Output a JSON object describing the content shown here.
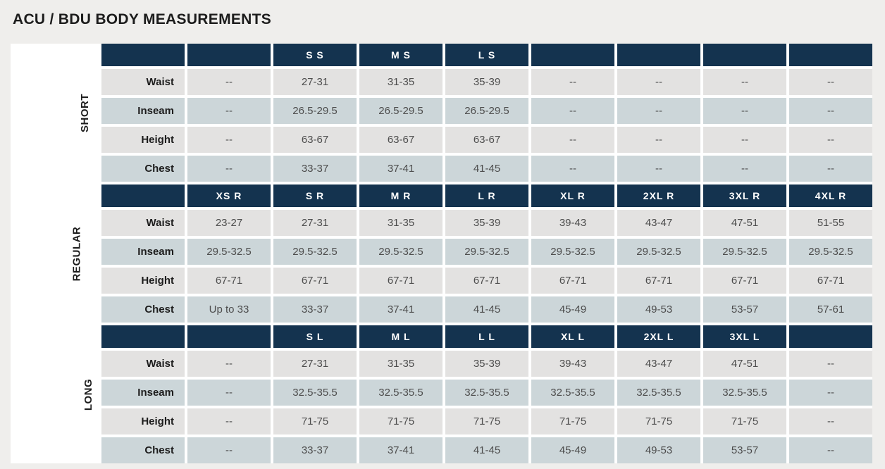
{
  "page": {
    "title": "ACU / BDU BODY MEASUREMENTS"
  },
  "colors": {
    "page_bg": "#efeeec",
    "header_bg": "#14334f",
    "row_gray": "#e3e2e1",
    "row_bluegray": "#ccd6d9",
    "header_text": "#ffffff",
    "value_text": "#4d4d4d",
    "label_text": "#1d1d1d",
    "separator": "#ffffff"
  },
  "table": {
    "measurement_labels": [
      "Waist",
      "Inseam",
      "Height",
      "Chest"
    ],
    "sections": [
      {
        "name": "SHORT",
        "size_headers": [
          "",
          "S S",
          "M S",
          "L S",
          "",
          "",
          "",
          ""
        ],
        "rows": [
          {
            "label": "Waist",
            "values": [
              "--",
              "27-31",
              "31-35",
              "35-39",
              "--",
              "--",
              "--",
              "--"
            ]
          },
          {
            "label": "Inseam",
            "values": [
              "--",
              "26.5-29.5",
              "26.5-29.5",
              "26.5-29.5",
              "--",
              "--",
              "--",
              "--"
            ]
          },
          {
            "label": "Height",
            "values": [
              "--",
              "63-67",
              "63-67",
              "63-67",
              "--",
              "--",
              "--",
              "--"
            ]
          },
          {
            "label": "Chest",
            "values": [
              "--",
              "33-37",
              "37-41",
              "41-45",
              "--",
              "--",
              "--",
              "--"
            ]
          }
        ]
      },
      {
        "name": "REGULAR",
        "size_headers": [
          "XS R",
          "S R",
          "M R",
          "L R",
          "XL R",
          "2XL R",
          "3XL R",
          "4XL R"
        ],
        "rows": [
          {
            "label": "Waist",
            "values": [
              "23-27",
              "27-31",
              "31-35",
              "35-39",
              "39-43",
              "43-47",
              "47-51",
              "51-55"
            ]
          },
          {
            "label": "Inseam",
            "values": [
              "29.5-32.5",
              "29.5-32.5",
              "29.5-32.5",
              "29.5-32.5",
              "29.5-32.5",
              "29.5-32.5",
              "29.5-32.5",
              "29.5-32.5"
            ]
          },
          {
            "label": "Height",
            "values": [
              "67-71",
              "67-71",
              "67-71",
              "67-71",
              "67-71",
              "67-71",
              "67-71",
              "67-71"
            ]
          },
          {
            "label": "Chest",
            "values": [
              "Up to 33",
              "33-37",
              "37-41",
              "41-45",
              "45-49",
              "49-53",
              "53-57",
              "57-61"
            ]
          }
        ]
      },
      {
        "name": "LONG",
        "size_headers": [
          "",
          "S L",
          "M L",
          "L L",
          "XL L",
          "2XL L",
          "3XL L",
          ""
        ],
        "rows": [
          {
            "label": "Waist",
            "values": [
              "--",
              "27-31",
              "31-35",
              "35-39",
              "39-43",
              "43-47",
              "47-51",
              "--"
            ]
          },
          {
            "label": "Inseam",
            "values": [
              "--",
              "32.5-35.5",
              "32.5-35.5",
              "32.5-35.5",
              "32.5-35.5",
              "32.5-35.5",
              "32.5-35.5",
              "--"
            ]
          },
          {
            "label": "Height",
            "values": [
              "--",
              "71-75",
              "71-75",
              "71-75",
              "71-75",
              "71-75",
              "71-75",
              "--"
            ]
          },
          {
            "label": "Chest",
            "values": [
              "--",
              "33-37",
              "37-41",
              "41-45",
              "45-49",
              "49-53",
              "53-57",
              "--"
            ]
          }
        ]
      }
    ]
  },
  "chart_data": {
    "type": "table",
    "title": "ACU / BDU BODY MEASUREMENTS",
    "row_labels": [
      "Waist",
      "Inseam",
      "Height",
      "Chest"
    ],
    "sections": [
      {
        "section": "SHORT",
        "columns": [
          "",
          "S S",
          "M S",
          "L S",
          "",
          "",
          "",
          ""
        ],
        "Waist": [
          "--",
          "27-31",
          "31-35",
          "35-39",
          "--",
          "--",
          "--",
          "--"
        ],
        "Inseam": [
          "--",
          "26.5-29.5",
          "26.5-29.5",
          "26.5-29.5",
          "--",
          "--",
          "--",
          "--"
        ],
        "Height": [
          "--",
          "63-67",
          "63-67",
          "63-67",
          "--",
          "--",
          "--",
          "--"
        ],
        "Chest": [
          "--",
          "33-37",
          "37-41",
          "41-45",
          "--",
          "--",
          "--",
          "--"
        ]
      },
      {
        "section": "REGULAR",
        "columns": [
          "XS R",
          "S R",
          "M R",
          "L R",
          "XL R",
          "2XL R",
          "3XL R",
          "4XL R"
        ],
        "Waist": [
          "23-27",
          "27-31",
          "31-35",
          "35-39",
          "39-43",
          "43-47",
          "47-51",
          "51-55"
        ],
        "Inseam": [
          "29.5-32.5",
          "29.5-32.5",
          "29.5-32.5",
          "29.5-32.5",
          "29.5-32.5",
          "29.5-32.5",
          "29.5-32.5",
          "29.5-32.5"
        ],
        "Height": [
          "67-71",
          "67-71",
          "67-71",
          "67-71",
          "67-71",
          "67-71",
          "67-71",
          "67-71"
        ],
        "Chest": [
          "Up to 33",
          "33-37",
          "37-41",
          "41-45",
          "45-49",
          "49-53",
          "53-57",
          "57-61"
        ]
      },
      {
        "section": "LONG",
        "columns": [
          "",
          "S L",
          "M L",
          "L L",
          "XL L",
          "2XL L",
          "3XL L",
          ""
        ],
        "Waist": [
          "--",
          "27-31",
          "31-35",
          "35-39",
          "39-43",
          "43-47",
          "47-51",
          "--"
        ],
        "Inseam": [
          "--",
          "32.5-35.5",
          "32.5-35.5",
          "32.5-35.5",
          "32.5-35.5",
          "32.5-35.5",
          "32.5-35.5",
          "--"
        ],
        "Height": [
          "--",
          "71-75",
          "71-75",
          "71-75",
          "71-75",
          "71-75",
          "71-75",
          "--"
        ],
        "Chest": [
          "--",
          "33-37",
          "37-41",
          "41-45",
          "45-49",
          "49-53",
          "53-57",
          "--"
        ]
      }
    ]
  }
}
